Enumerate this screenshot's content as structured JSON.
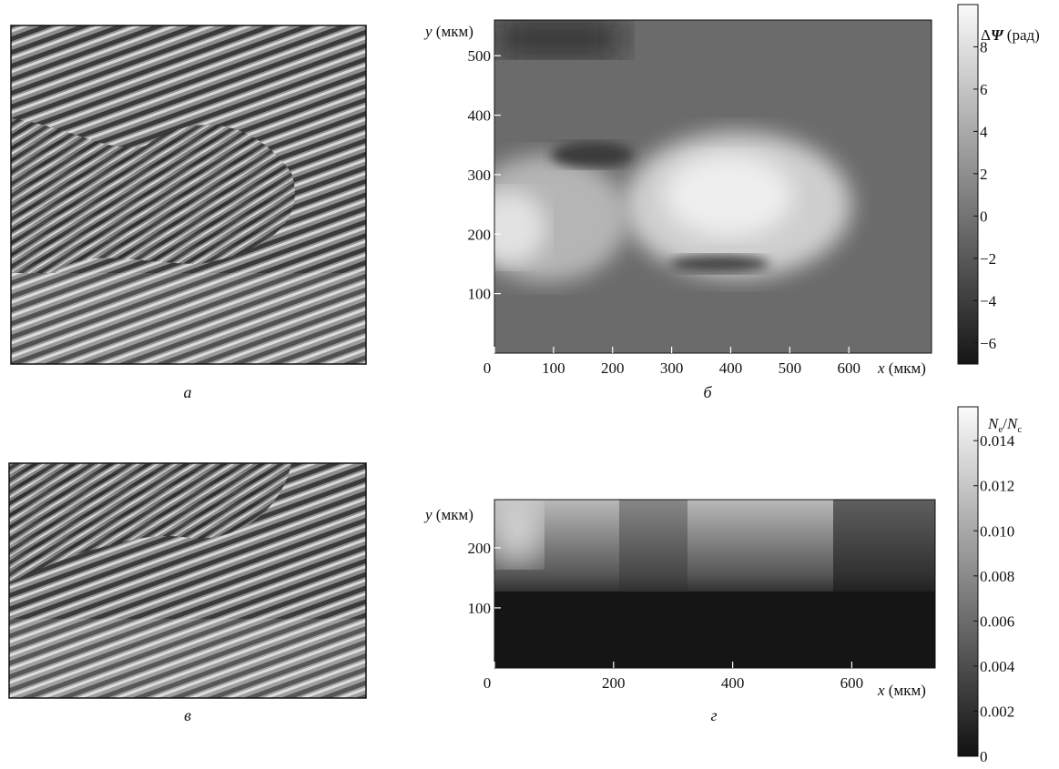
{
  "panels": {
    "a": {
      "caption": "а"
    },
    "b": {
      "caption": "б"
    },
    "v": {
      "caption": "в"
    },
    "g": {
      "caption": "г"
    }
  },
  "chart_data": [
    {
      "panel": "б",
      "type": "heatmap",
      "xlabel": {
        "var": "x",
        "unit": " (мкм)"
      },
      "ylabel": {
        "var": "y",
        "unit": " (мкм)"
      },
      "xlim": [
        0,
        740
      ],
      "ylim": [
        0,
        560
      ],
      "xticks": [
        0,
        100,
        200,
        300,
        400,
        500,
        600
      ],
      "yticks": [
        100,
        200,
        300,
        400,
        500
      ],
      "colorbar": {
        "label_prefix": "Δ",
        "label_var": "Ψ",
        "label_unit": " (рад)",
        "range": [
          -7,
          10
        ],
        "ticks": [
          8,
          6,
          4,
          2,
          0,
          -2,
          -4,
          -6
        ]
      }
    },
    {
      "panel": "г",
      "type": "heatmap",
      "xlabel": {
        "var": "x",
        "unit": " (мкм)"
      },
      "ylabel": {
        "var": "y",
        "unit": " (мкм)"
      },
      "xlim": [
        0,
        740
      ],
      "ylim": [
        0,
        280
      ],
      "xticks": [
        0,
        200,
        400,
        600
      ],
      "yticks": [
        100,
        200
      ],
      "colorbar": {
        "label_num": "N",
        "label_num_sub": "e",
        "label_den": "N",
        "label_den_sub": "c",
        "range": [
          0,
          0.0155
        ],
        "ticks": [
          "0.014",
          "0.012",
          "0.010",
          "0.008",
          "0.006",
          "0.004",
          "0.002",
          "0"
        ]
      }
    }
  ]
}
